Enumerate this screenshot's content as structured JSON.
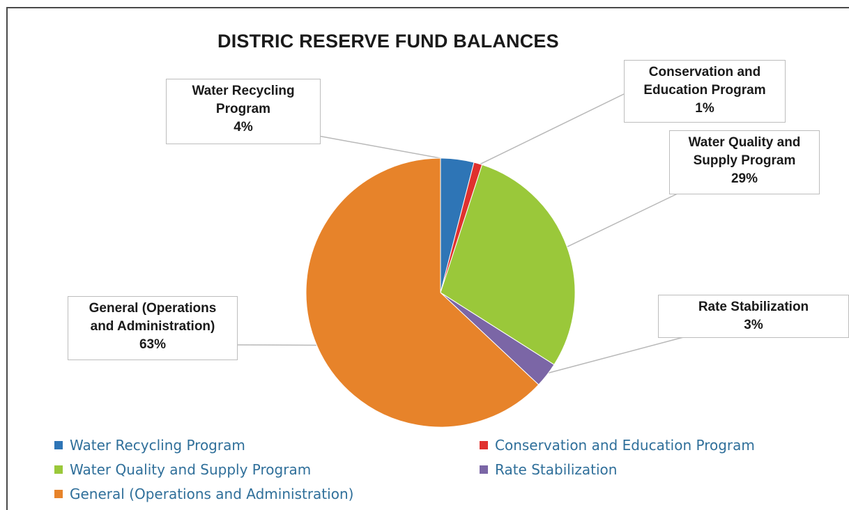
{
  "chart_data": {
    "type": "pie",
    "title": "DISTRIC RESERVE FUND BALANCES",
    "slices": [
      {
        "label": "Water Recycling Program",
        "value": 4,
        "value_label": "4%",
        "color": "#2e75b6"
      },
      {
        "label": "Conservation and Education Program",
        "value": 1,
        "value_label": "1%",
        "color": "#e0312e"
      },
      {
        "label": "Water Quality and Supply Program",
        "value": 29,
        "value_label": "29%",
        "color": "#9ac83a"
      },
      {
        "label": "Rate Stabilization",
        "value": 3,
        "value_label": "3%",
        "color": "#7b66a6"
      },
      {
        "label": "General (Operations and Administration)",
        "value": 63,
        "value_label": "63%",
        "color": "#e7832a"
      }
    ],
    "legend_position": "bottom",
    "data_labels": [
      {
        "lines": [
          "Water Recycling",
          "Program",
          "4%"
        ]
      },
      {
        "lines": [
          "Conservation and",
          "Education Program",
          "1%"
        ]
      },
      {
        "lines": [
          "Water Quality and",
          "Supply Program",
          "29%"
        ]
      },
      {
        "lines": [
          "Rate Stabilization",
          "3%"
        ]
      },
      {
        "lines": [
          "General (Operations",
          "and Administration)",
          "63%"
        ]
      }
    ]
  }
}
